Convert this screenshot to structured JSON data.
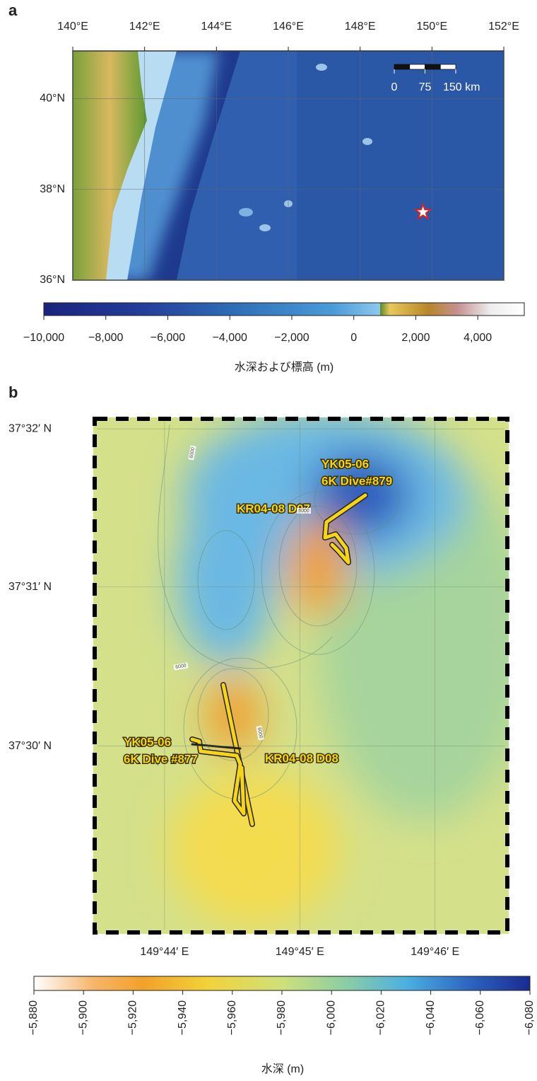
{
  "panel_a": {
    "label": "a",
    "map": {
      "lonlim": [
        140,
        152
      ],
      "latlim": [
        36,
        41.05
      ],
      "lonticks": [
        {
          "value": 140,
          "label": "140°E"
        },
        {
          "value": 142,
          "label": "142°E"
        },
        {
          "value": 144,
          "label": "144°E"
        },
        {
          "value": 146,
          "label": "146°E"
        },
        {
          "value": 148,
          "label": "148°E"
        },
        {
          "value": 150,
          "label": "150°E"
        },
        {
          "value": 152,
          "label": "152°E"
        }
      ],
      "latticks": [
        {
          "value": 36,
          "label": "36°N"
        },
        {
          "value": 38,
          "label": "38°N"
        },
        {
          "value": 40,
          "label": "40°N"
        }
      ],
      "site": {
        "lon": 149.75,
        "lat": 37.5
      },
      "scale_bar": {
        "lim": [
          0,
          150
        ],
        "ticks": [
          0,
          75,
          {
            "value": 150,
            "label": "150 km"
          }
        ]
      }
    },
    "colorbar": {
      "lim": [
        -10000,
        5500
      ],
      "ticks": [
        {
          "value": -10000,
          "label": "−10,000"
        },
        {
          "value": -8000,
          "label": "−8,000"
        },
        {
          "value": -6000,
          "label": "−6,000"
        },
        {
          "value": -4000,
          "label": "−4,000"
        },
        {
          "value": -2000,
          "label": "−2,000"
        },
        0,
        {
          "value": 2000,
          "label": "2,000"
        },
        {
          "value": 4000,
          "label": "4,000"
        }
      ],
      "title": "水深および標高 (m)"
    }
  },
  "panel_b": {
    "label": "b",
    "map": {
      "lonlim": [
        149.7245,
        149.7758
      ],
      "latlim": [
        37.4803,
        37.5345
      ],
      "lonticks": [
        {
          "value": 149.7333,
          "label": "149°44′ E"
        },
        {
          "value": 149.75,
          "label": "149°45′ E"
        },
        {
          "value": 149.7667,
          "label": "149°46′ E"
        }
      ],
      "latticks": [
        {
          "value": 37.5,
          "label": "37°30′ N"
        },
        {
          "value": 37.5167,
          "label": "37°31′ N"
        },
        {
          "value": 37.5333,
          "label": "37°32′ N"
        }
      ],
      "annotations": [
        {
          "lines": [
            "YK05-06",
            "6K Dive#879"
          ]
        },
        {
          "lines": [
            "KR04-08 D07"
          ]
        },
        {
          "lines": [
            "YK05-06",
            "6K Dive #877"
          ]
        },
        {
          "lines": [
            "KR04-08 D08"
          ]
        }
      ],
      "contour_labels": [
        "6000",
        "6000",
        "6000",
        "6000"
      ]
    },
    "colorbar": {
      "lim": [
        -5880,
        -6080
      ],
      "ticks": [
        {
          "value": -5880,
          "label": "−5,880"
        },
        {
          "value": -5900,
          "label": "−5,900"
        },
        {
          "value": -5920,
          "label": "−5,920"
        },
        {
          "value": -5940,
          "label": "−5,940"
        },
        {
          "value": -5960,
          "label": "−5,960"
        },
        {
          "value": -5980,
          "label": "−5,980"
        },
        {
          "value": -6000,
          "label": "−6,000"
        },
        {
          "value": -6020,
          "label": "−6,020"
        },
        {
          "value": -6040,
          "label": "−6,040"
        },
        {
          "value": -6060,
          "label": "−6,060"
        },
        {
          "value": -6080,
          "label": "−6,080"
        }
      ],
      "title": "水深 (m)"
    }
  }
}
